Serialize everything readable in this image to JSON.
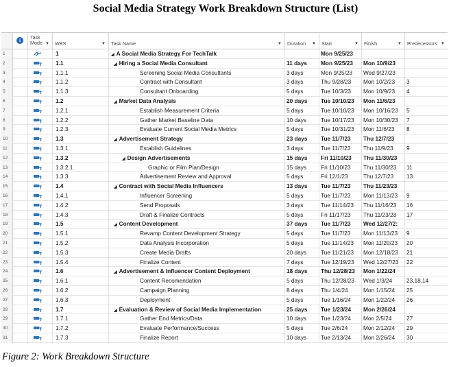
{
  "title": "Social Media Strategy Work Breakdown Structure (List)",
  "caption": "Figure 2: Work Breakdown Structure",
  "columns": {
    "task_mode_line1": "Task",
    "task_mode_line2": "Mode",
    "wbs": "WBS",
    "task_name": "Task Name",
    "duration": "Duration",
    "start": "Start",
    "finish": "Finish",
    "predecessors": "Predecessors"
  },
  "colors": {
    "accent": "#1f63b5",
    "summary_icon": "#2e75b6"
  },
  "rows": [
    {
      "n": "1",
      "mode": "summary",
      "wbs": "1",
      "name": "A Social Media Strategy For TechTalk",
      "level": 0,
      "summary": true,
      "dur": "",
      "start": "Mon 9/25/23",
      "fin": "",
      "pred": ""
    },
    {
      "n": "2",
      "mode": "auto",
      "wbs": "1.1",
      "name": "Hiring a Social Media Consultant",
      "level": 1,
      "summary": true,
      "dur": "11 days",
      "start": "Mon 9/25/23",
      "fin": "Mon 10/9/23",
      "pred": ""
    },
    {
      "n": "3",
      "mode": "auto",
      "wbs": "1.1.1",
      "name": "Screening Social Media Consultants",
      "level": 2,
      "summary": false,
      "dur": "3 days",
      "start": "Mon 9/25/23",
      "fin": "Wed 9/27/23",
      "pred": ""
    },
    {
      "n": "4",
      "mode": "auto",
      "wbs": "1.1.2",
      "name": "Contract with Consultant",
      "level": 2,
      "summary": false,
      "dur": "3 days",
      "start": "Thu 9/28/23",
      "fin": "Mon 10/2/23",
      "pred": "3"
    },
    {
      "n": "5",
      "mode": "auto",
      "wbs": "1.1.3",
      "name": "Consultant Onboarding",
      "level": 2,
      "summary": false,
      "dur": "5 days",
      "start": "Tue 10/3/23",
      "fin": "Mon 10/9/23",
      "pred": "4"
    },
    {
      "n": "6",
      "mode": "auto",
      "wbs": "1.2",
      "name": "Market Data Analysis",
      "level": 1,
      "summary": true,
      "dur": "20 days",
      "start": "Tue 10/10/23",
      "fin": "Mon 11/6/23",
      "pred": ""
    },
    {
      "n": "7",
      "mode": "auto",
      "wbs": "1.2.1",
      "name": "Establish Measurement Criteria",
      "level": 2,
      "summary": false,
      "dur": "5 days",
      "start": "Tue 10/10/23",
      "fin": "Mon 10/16/23",
      "pred": "5"
    },
    {
      "n": "8",
      "mode": "auto",
      "wbs": "1.2.2",
      "name": "Gather Market Baseline Data",
      "level": 2,
      "summary": false,
      "dur": "10 days",
      "start": "Tue 10/17/23",
      "fin": "Mon 10/30/23",
      "pred": "7"
    },
    {
      "n": "9",
      "mode": "auto",
      "wbs": "1.2.3",
      "name": "Evaluate Current Social Media Metrics",
      "level": 2,
      "summary": false,
      "dur": "5 days",
      "start": "Tue 10/31/23",
      "fin": "Mon 11/6/23",
      "pred": "8"
    },
    {
      "n": "10",
      "mode": "auto",
      "wbs": "1.3",
      "name": "Advertisement Strategy",
      "level": 1,
      "summary": true,
      "dur": "23 days",
      "start": "Tue 11/7/23",
      "fin": "Thu 12/7/23",
      "pred": ""
    },
    {
      "n": "11",
      "mode": "auto",
      "wbs": "1.3.1",
      "name": "Establish Guidelines",
      "level": 2,
      "summary": false,
      "dur": "3 days",
      "start": "Tue 11/7/23",
      "fin": "Thu 11/9/23",
      "pred": "9"
    },
    {
      "n": "12",
      "mode": "auto",
      "wbs": "1.3.2",
      "name": "Design Advertisements",
      "level": 2,
      "summary": true,
      "dur": "15 days",
      "start": "Fri 11/10/23",
      "fin": "Thu 11/30/23",
      "pred": ""
    },
    {
      "n": "13",
      "mode": "auto",
      "wbs": "1.3.2.1",
      "name": "Graphic or Film Plan/Design",
      "level": 3,
      "summary": false,
      "dur": "15 days",
      "start": "Fri 11/10/23",
      "fin": "Thu 11/30/23",
      "pred": "11"
    },
    {
      "n": "14",
      "mode": "auto",
      "wbs": "1.3.3",
      "name": "Advertisement Review and Approval",
      "level": 2,
      "summary": false,
      "dur": "5 days",
      "start": "Fri 12/1/23",
      "fin": "Thu 12/7/23",
      "pred": "13"
    },
    {
      "n": "15",
      "mode": "auto",
      "wbs": "1.4",
      "name": "Contract with Social Media Influencers",
      "level": 1,
      "summary": true,
      "dur": "13 days",
      "start": "Tue 11/7/23",
      "fin": "Thu 11/23/23",
      "pred": ""
    },
    {
      "n": "16",
      "mode": "auto",
      "wbs": "1.4.1",
      "name": "Influencer Screening",
      "level": 2,
      "summary": false,
      "dur": "5 days",
      "start": "Tue 11/7/23",
      "fin": "Mon 11/13/23",
      "pred": "9"
    },
    {
      "n": "17",
      "mode": "auto",
      "wbs": "1.4.2",
      "name": "Send Proposals",
      "level": 2,
      "summary": false,
      "dur": "3 days",
      "start": "Tue 11/14/23",
      "fin": "Thu 11/16/23",
      "pred": "16"
    },
    {
      "n": "18",
      "mode": "auto",
      "wbs": "1.4.3",
      "name": "Draft & Finalize Contracts",
      "level": 2,
      "summary": false,
      "dur": "5 days",
      "start": "Fri 11/17/23",
      "fin": "Thu 11/23/23",
      "pred": "17"
    },
    {
      "n": "19",
      "mode": "auto",
      "wbs": "1.5",
      "name": "Content Development",
      "level": 1,
      "summary": true,
      "dur": "37 days",
      "start": "Tue 11/7/23",
      "fin": "Wed 12/27/2:",
      "pred": ""
    },
    {
      "n": "20",
      "mode": "auto",
      "wbs": "1.5.1",
      "name": "Revamp Content Development Strategy",
      "level": 2,
      "summary": false,
      "dur": "5 days",
      "start": "Tue 11/7/23",
      "fin": "Mon 11/13/23",
      "pred": "9"
    },
    {
      "n": "21",
      "mode": "auto",
      "wbs": "1.5.2",
      "name": "Data Analysis Incorporation",
      "level": 2,
      "summary": false,
      "dur": "5 days",
      "start": "Tue 11/14/23",
      "fin": "Mon 11/20/23",
      "pred": "20"
    },
    {
      "n": "22",
      "mode": "auto",
      "wbs": "1.5.3",
      "name": "Create Media Drafts",
      "level": 2,
      "summary": false,
      "dur": "20 days",
      "start": "Tue 11/21/23",
      "fin": "Mon 12/18/23",
      "pred": "21"
    },
    {
      "n": "23",
      "mode": "auto",
      "wbs": "1.5.4",
      "name": "Finalize Content",
      "level": 2,
      "summary": false,
      "dur": "7 days",
      "start": "Tue 12/19/23",
      "fin": "Wed 12/27/23",
      "pred": "22"
    },
    {
      "n": "24",
      "mode": "auto",
      "wbs": "1.6",
      "name": "Advertisement & Influencer Content Deployment",
      "level": 1,
      "summary": true,
      "dur": "18 days",
      "start": "Thu 12/28/23",
      "fin": "Mon 1/22/24",
      "pred": ""
    },
    {
      "n": "25",
      "mode": "auto",
      "wbs": "1.6.1",
      "name": "Content Recomendation",
      "level": 2,
      "summary": false,
      "dur": "5 days",
      "start": "Thu 12/28/23",
      "fin": "Wed 1/3/24",
      "pred": "23,18,14"
    },
    {
      "n": "26",
      "mode": "auto",
      "wbs": "1.6.2",
      "name": "Campaign Planning",
      "level": 2,
      "summary": false,
      "dur": "8 days",
      "start": "Thu 1/4/24",
      "fin": "Mon 1/15/24",
      "pred": "25"
    },
    {
      "n": "27",
      "mode": "auto",
      "wbs": "1.6.3",
      "name": "Deployment",
      "level": 2,
      "summary": false,
      "dur": "5 days",
      "start": "Tue 1/16/24",
      "fin": "Mon 1/22/24",
      "pred": "26"
    },
    {
      "n": "28",
      "mode": "auto",
      "wbs": "1.7",
      "name": "Evaluation & Review of Social Media Implementation",
      "level": 1,
      "summary": true,
      "dur": "25 days",
      "start": "Tue 1/23/24",
      "fin": "Mon 2/26/24",
      "pred": ""
    },
    {
      "n": "29",
      "mode": "auto",
      "wbs": "1.7.1",
      "name": "Gather End Metrics/Data",
      "level": 2,
      "summary": false,
      "dur": "10 days",
      "start": "Tue 1/23/24",
      "fin": "Mon 2/5/24",
      "pred": "27"
    },
    {
      "n": "30",
      "mode": "auto",
      "wbs": "1.7.2",
      "name": "Evaluate Performance/Success",
      "level": 2,
      "summary": false,
      "dur": "5 days",
      "start": "Tue 2/6/24",
      "fin": "Mon 2/12/24",
      "pred": "29"
    },
    {
      "n": "31",
      "mode": "auto",
      "wbs": "1.7.3",
      "name": "Finalize Report",
      "level": 2,
      "summary": false,
      "dur": "10 days",
      "start": "Tue 2/13/24",
      "fin": "Mon 2/26/24",
      "pred": "30"
    }
  ]
}
